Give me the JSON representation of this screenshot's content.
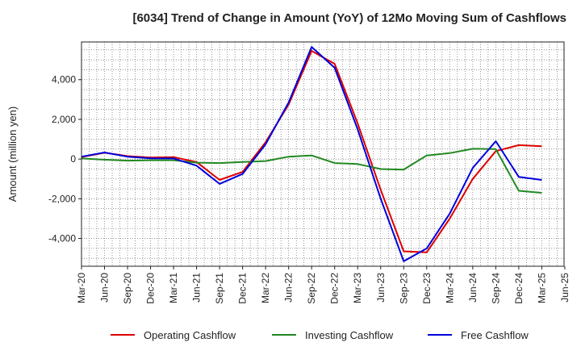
{
  "chart_data": {
    "type": "line",
    "title": "[6034]  Trend of Change in Amount (YoY) of 12Mo Moving Sum of Cashflows",
    "xlabel": "",
    "ylabel": "Amount (million yen)",
    "ylim": [
      -5400,
      5900
    ],
    "yticks": [
      -4000,
      -2000,
      0,
      2000,
      4000
    ],
    "ytick_labels": [
      "-4,000",
      "-2,000",
      "0",
      "2,000",
      "4,000"
    ],
    "x_tick_labels": [
      "Mar-20",
      "Jun-20",
      "Sep-20",
      "Dec-20",
      "Mar-21",
      "Jun-21",
      "Sep-21",
      "Dec-21",
      "Mar-22",
      "Jun-22",
      "Sep-22",
      "Dec-22",
      "Mar-23",
      "Jun-23",
      "Sep-23",
      "Dec-23",
      "Mar-24",
      "Jun-24",
      "Sep-24",
      "Dec-24",
      "Mar-25",
      "Jun-25"
    ],
    "grid": true,
    "legend_position": "bottom",
    "series": [
      {
        "name": "Operating Cashflow",
        "color": "#dd0000",
        "values": [
          100,
          320,
          150,
          80,
          100,
          -150,
          -1050,
          -650,
          850,
          2750,
          5450,
          4800,
          1800,
          -1550,
          -4650,
          -4700,
          -3000,
          -1000,
          400,
          700,
          650
        ]
      },
      {
        "name": "Investing Cashflow",
        "color": "#228822",
        "values": [
          30,
          -30,
          -80,
          -60,
          -60,
          -180,
          -200,
          -150,
          -100,
          120,
          180,
          -200,
          -250,
          -500,
          -530,
          180,
          300,
          520,
          500,
          -1600,
          -1700
        ]
      },
      {
        "name": "Free Cashflow",
        "color": "#0000dd",
        "values": [
          120,
          330,
          120,
          40,
          30,
          -330,
          -1250,
          -750,
          750,
          2850,
          5650,
          4600,
          1500,
          -2000,
          -5150,
          -4500,
          -2750,
          -450,
          900,
          -900,
          -1050
        ]
      }
    ]
  }
}
